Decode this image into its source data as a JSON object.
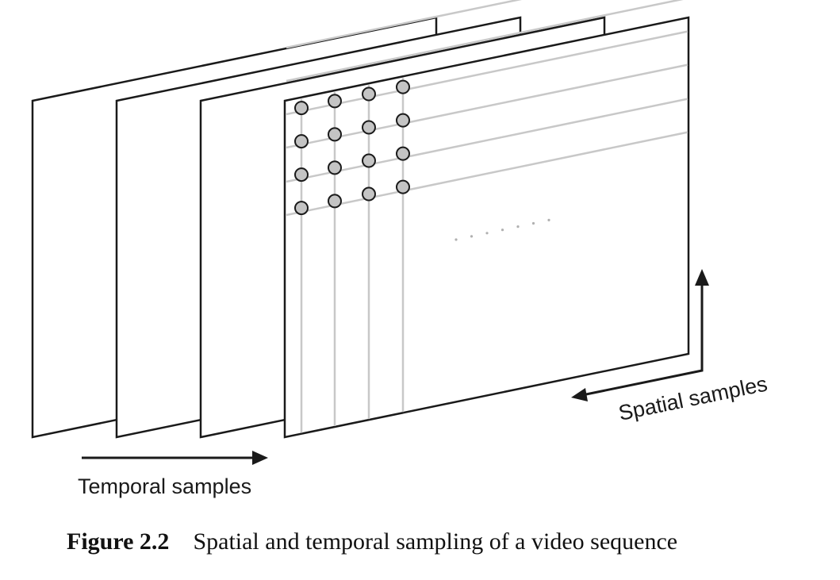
{
  "labels": {
    "temporal": "Temporal samples",
    "spatial": "Spatial samples"
  },
  "caption": {
    "number": "Figure 2.2",
    "text": "Spatial and temporal sampling of a video sequence"
  },
  "diagram": {
    "frame_count": 4,
    "sample_grid": {
      "rows": 4,
      "cols": 4
    },
    "colors": {
      "frame_stroke": "#1a1a1a",
      "grid_line": "#c8c8c8",
      "sample_fill": "#c4c4c4",
      "arrow": "#1a1a1a",
      "ellipsis": "#b0b0b0"
    }
  }
}
